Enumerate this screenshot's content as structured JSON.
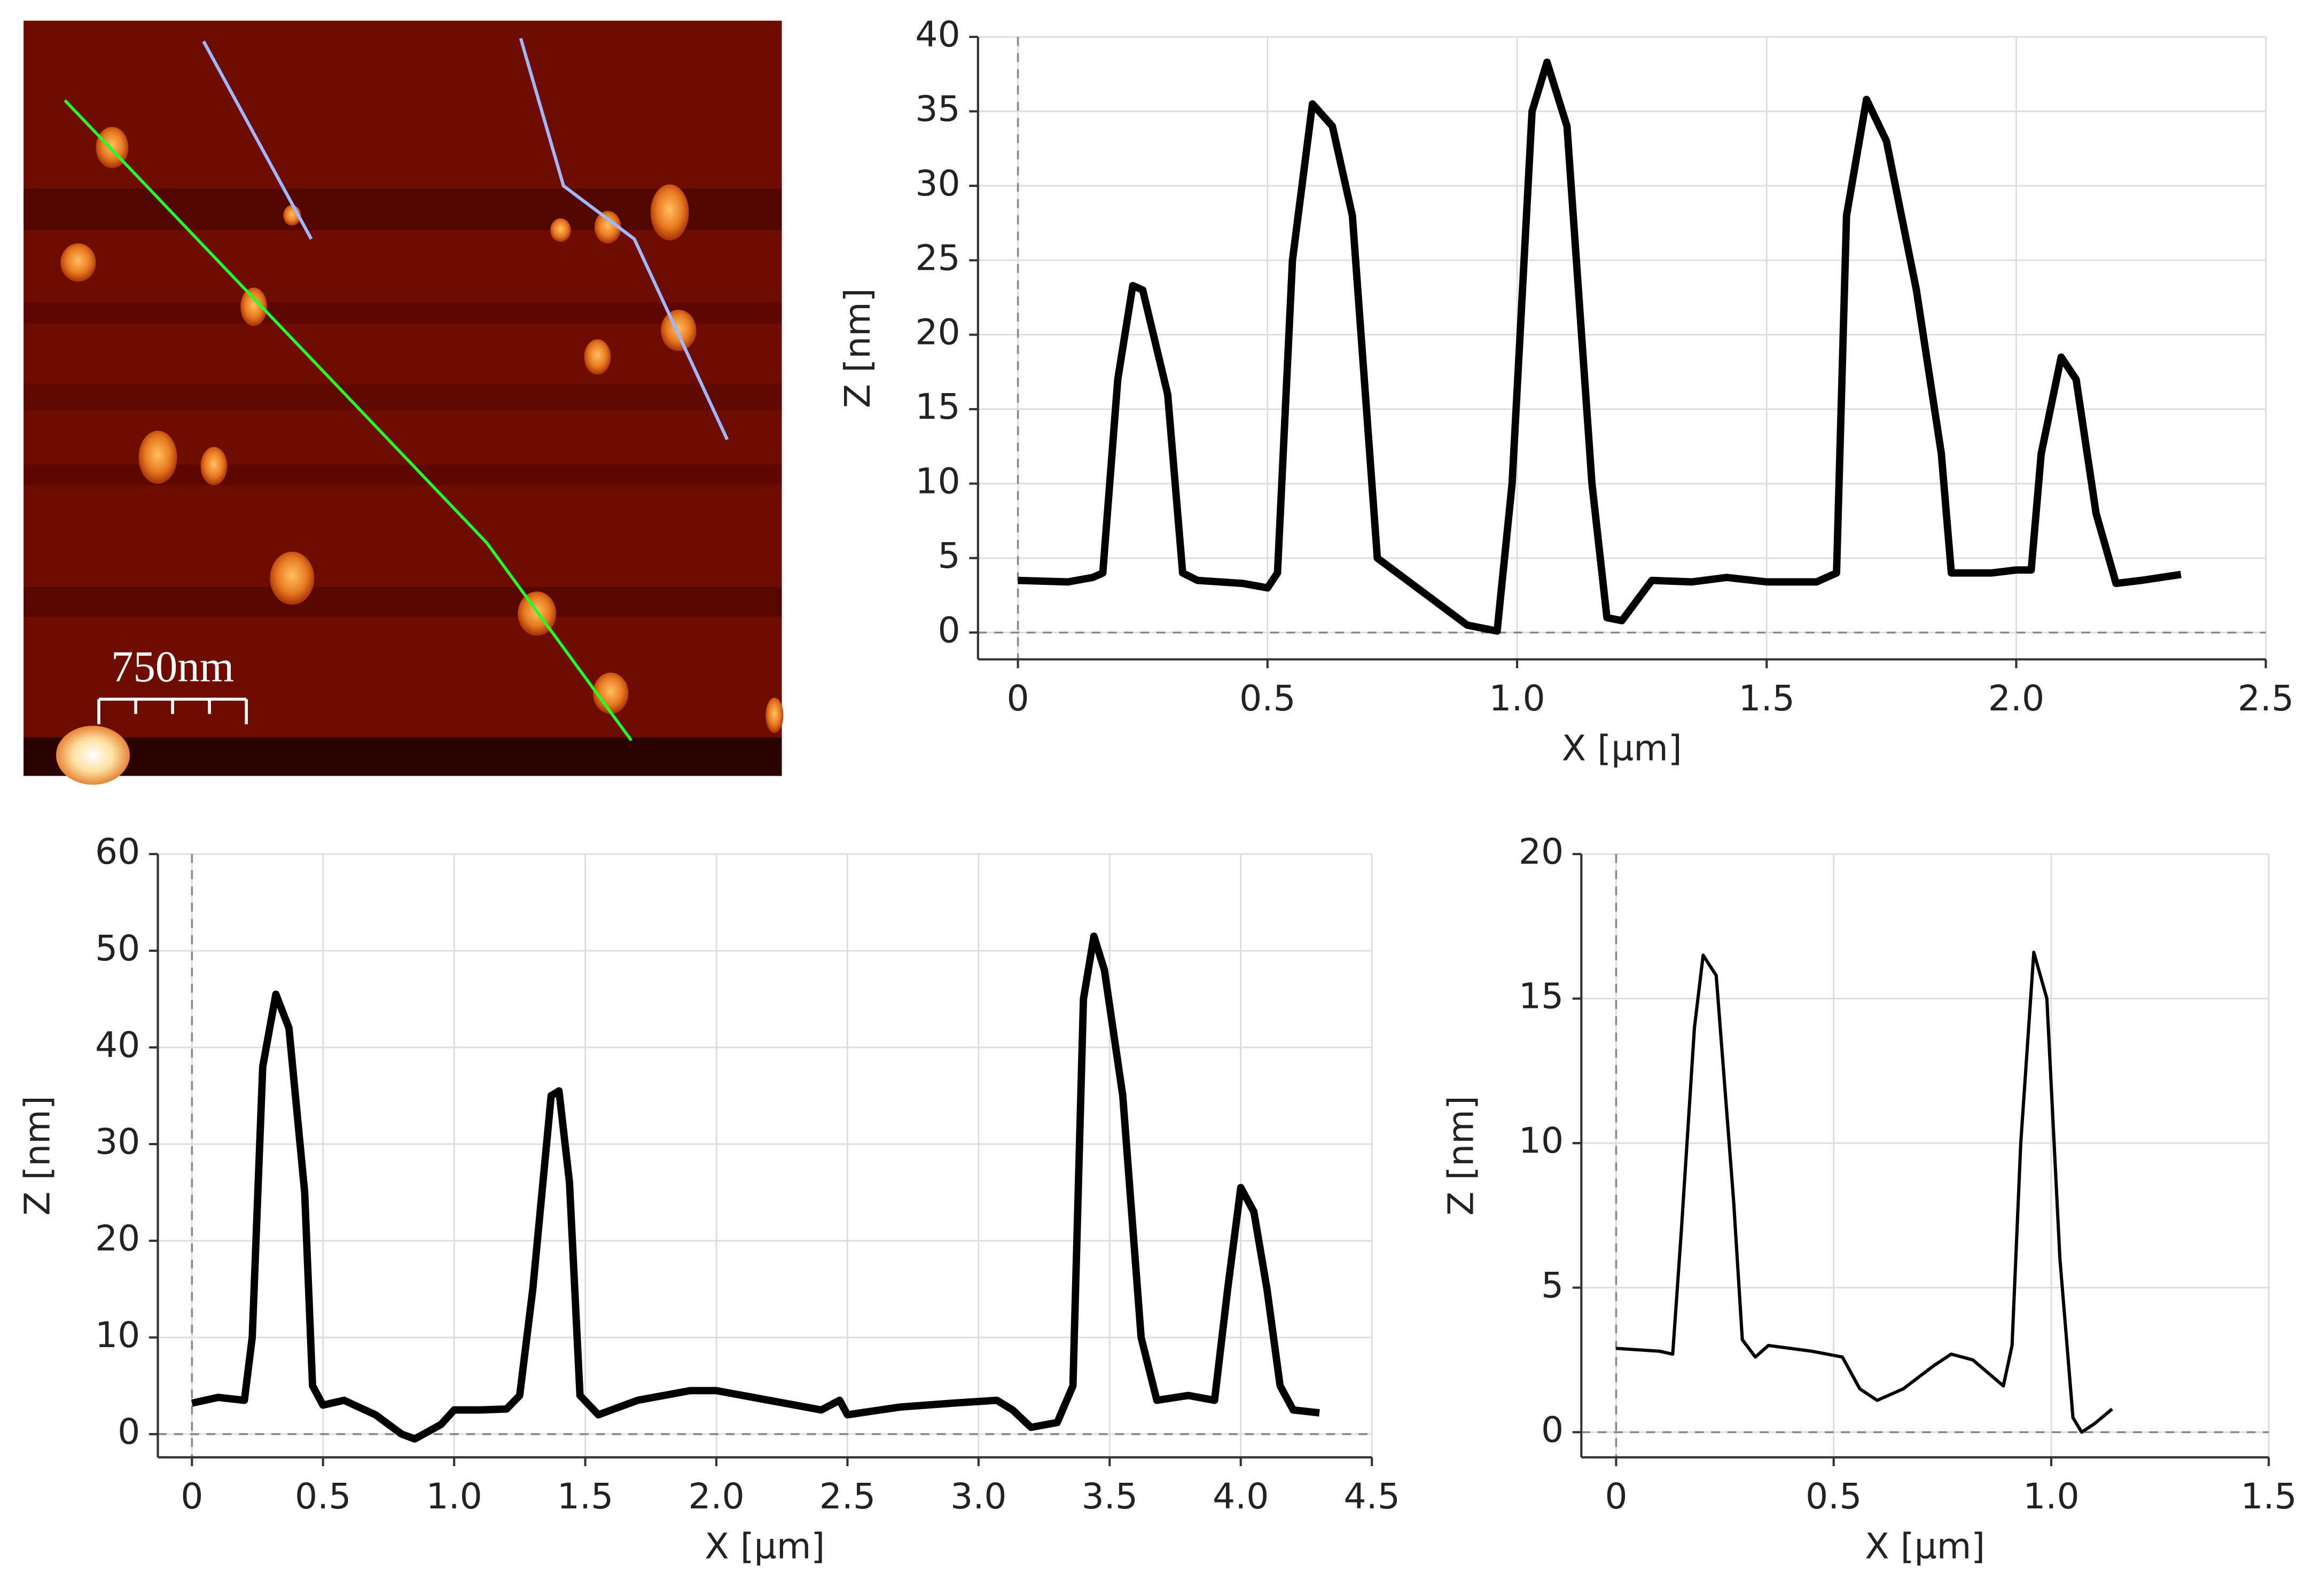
{
  "image": {
    "scale_bar": "750nm"
  },
  "chart_data": [
    {
      "type": "line",
      "xlabel": "X [µm]",
      "ylabel": "Z [nm]",
      "color": "#000000",
      "grid": true,
      "xlim": [
        -0.08,
        2.5
      ],
      "ylim": [
        -1.8,
        40
      ],
      "xticks": [
        0,
        0.5,
        {
          "value": 1,
          "label": "1.0"
        },
        1.5,
        {
          "value": 2,
          "label": "2.0"
        },
        2.5
      ],
      "yticks": [
        0,
        5,
        10,
        15,
        20,
        25,
        30,
        35,
        40
      ],
      "x": [
        0,
        0.1,
        0.15,
        0.17,
        0.2,
        0.23,
        0.25,
        0.3,
        0.33,
        0.36,
        0.45,
        0.5,
        0.52,
        0.55,
        0.59,
        0.63,
        0.67,
        0.72,
        0.8,
        0.9,
        0.96,
        0.99,
        1.03,
        1.06,
        1.1,
        1.15,
        1.18,
        1.21,
        1.27,
        1.35,
        1.42,
        1.5,
        1.6,
        1.64,
        1.66,
        1.7,
        1.74,
        1.8,
        1.85,
        1.87,
        1.95,
        2.0,
        2.03,
        2.05,
        2.09,
        2.12,
        2.16,
        2.2,
        2.25,
        2.33
      ],
      "values": [
        3.5,
        3.4,
        3.7,
        4.0,
        17,
        23.3,
        23,
        16,
        4,
        3.5,
        3.3,
        3.0,
        4,
        25,
        35.5,
        34,
        28,
        5,
        3,
        0.5,
        0.1,
        10,
        35,
        38.3,
        34,
        10,
        1,
        0.8,
        3.5,
        3.4,
        3.7,
        3.4,
        3.4,
        4,
        28,
        35.8,
        33,
        23,
        12,
        4,
        4,
        4.2,
        4.2,
        12,
        18.5,
        17,
        8,
        3.3,
        3.5,
        3.9
      ]
    },
    {
      "type": "line",
      "xlabel": "X [µm]",
      "ylabel": "Z [nm]",
      "color": "#000000",
      "grid": true,
      "xlim": [
        -0.13,
        4.5
      ],
      "ylim": [
        -2.4,
        60
      ],
      "xticks": [
        0,
        0.5,
        {
          "value": 1,
          "label": "1.0"
        },
        1.5,
        {
          "value": 2,
          "label": "2.0"
        },
        2.5,
        {
          "value": 3,
          "label": "3.0"
        },
        3.5,
        {
          "value": 4,
          "label": "4.0"
        },
        4.5
      ],
      "yticks": [
        0,
        10,
        20,
        30,
        40,
        50,
        60
      ],
      "x": [
        0,
        0.1,
        0.2,
        0.23,
        0.27,
        0.32,
        0.37,
        0.43,
        0.46,
        0.5,
        0.58,
        0.7,
        0.8,
        0.85,
        0.95,
        1.0,
        1.1,
        1.2,
        1.25,
        1.3,
        1.37,
        1.4,
        1.44,
        1.48,
        1.55,
        1.6,
        1.7,
        1.9,
        2.0,
        2.2,
        2.4,
        2.47,
        2.5,
        2.7,
        2.9,
        3.07,
        3.13,
        3.2,
        3.3,
        3.36,
        3.4,
        3.44,
        3.48,
        3.55,
        3.62,
        3.68,
        3.8,
        3.9,
        3.95,
        4.0,
        4.05,
        4.1,
        4.15,
        4.2,
        4.3
      ],
      "values": [
        3.2,
        3.8,
        3.5,
        10,
        38,
        45.5,
        42,
        25,
        5,
        3,
        3.5,
        2,
        0,
        -0.5,
        1,
        2.5,
        2.5,
        2.6,
        4,
        15,
        35,
        35.5,
        26,
        4,
        2,
        2.5,
        3.5,
        4.5,
        4.5,
        3.5,
        2.5,
        3.5,
        2,
        2.8,
        3.2,
        3.5,
        2.5,
        0.7,
        1.2,
        5,
        45,
        51.5,
        48,
        35,
        10,
        3.5,
        4,
        3.5,
        15,
        25.5,
        23,
        15,
        5,
        2.5,
        2.2
      ]
    },
    {
      "type": "line",
      "xlabel": "X [µm]",
      "ylabel": "Z [nm]",
      "color": "#000000",
      "grid": true,
      "xlim": [
        -0.08,
        1.5
      ],
      "ylim": [
        -0.87,
        20
      ],
      "xticks": [
        0,
        0.5,
        {
          "value": 1,
          "label": "1.0"
        },
        1.5
      ],
      "yticks": [
        0,
        5,
        10,
        15,
        20
      ],
      "x": [
        0,
        0.1,
        0.13,
        0.15,
        0.18,
        0.2,
        0.23,
        0.27,
        0.29,
        0.32,
        0.35,
        0.45,
        0.52,
        0.56,
        0.6,
        0.66,
        0.73,
        0.77,
        0.82,
        0.89,
        0.91,
        0.93,
        0.96,
        0.99,
        1.02,
        1.05,
        1.07,
        1.1,
        1.14
      ],
      "values": [
        2.9,
        2.8,
        2.7,
        7,
        14,
        16.5,
        15.8,
        8,
        3.2,
        2.6,
        3.0,
        2.8,
        2.6,
        1.5,
        1.1,
        1.5,
        2.3,
        2.7,
        2.5,
        1.6,
        3,
        10,
        16.6,
        15,
        6,
        0.5,
        0,
        0.3,
        0.8
      ]
    }
  ]
}
